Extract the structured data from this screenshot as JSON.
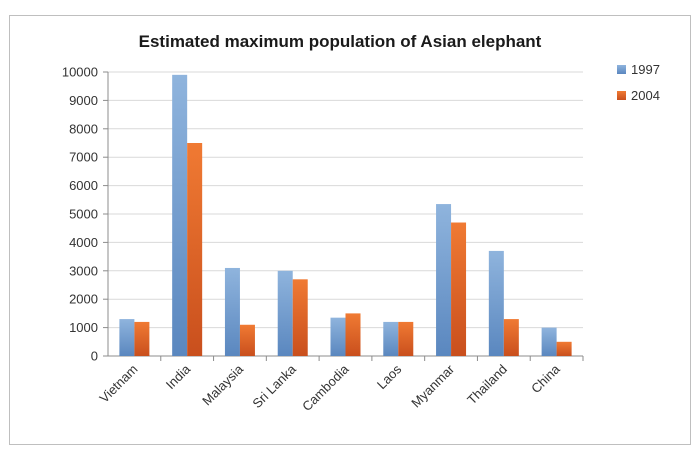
{
  "chart_data": {
    "type": "bar",
    "title": "Estimated maximum population of Asian elephant",
    "xlabel": "",
    "ylabel": "",
    "categories": [
      "Vietnam",
      "India",
      "Malaysia",
      "Sri Lanka",
      "Cambodia",
      "Laos",
      "Myanmar",
      "Thailand",
      "China"
    ],
    "series": [
      {
        "name": "1997",
        "values": [
          1300,
          9900,
          3100,
          3000,
          1350,
          1200,
          5350,
          3700,
          1000
        ],
        "color": "#6a99cc"
      },
      {
        "name": "2004",
        "values": [
          1200,
          7500,
          1100,
          2700,
          1500,
          1200,
          4700,
          1300,
          500
        ],
        "color": "#e2662a"
      }
    ],
    "ylim": [
      0,
      10000
    ],
    "yticks": [
      "0",
      "1000",
      "2000",
      "3000",
      "4000",
      "5000",
      "6000",
      "7000",
      "8000",
      "9000",
      "10000"
    ],
    "grid": true,
    "legend_position": "top-right"
  }
}
